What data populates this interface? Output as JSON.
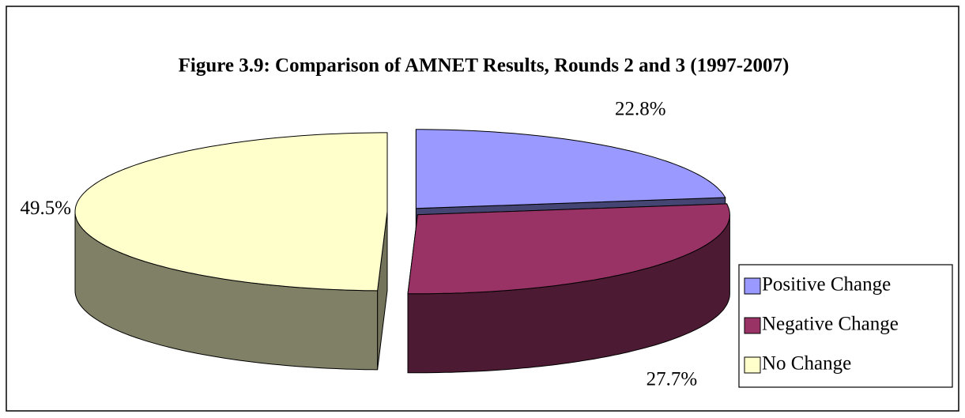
{
  "chart_data": {
    "type": "pie3d",
    "title": "Figure 3.9: Comparison of AMNET Results, Rounds 2 and 3 (1997-2007)",
    "categories": [
      "Positive Change",
      "Negative Change",
      "No Change"
    ],
    "values": [
      22.8,
      27.7,
      49.5
    ],
    "value_labels": [
      "22.8%",
      "27.7%",
      "49.5%"
    ],
    "colors": [
      "#9999ff",
      "#993366",
      "#ffffcc"
    ],
    "legend": "right"
  }
}
